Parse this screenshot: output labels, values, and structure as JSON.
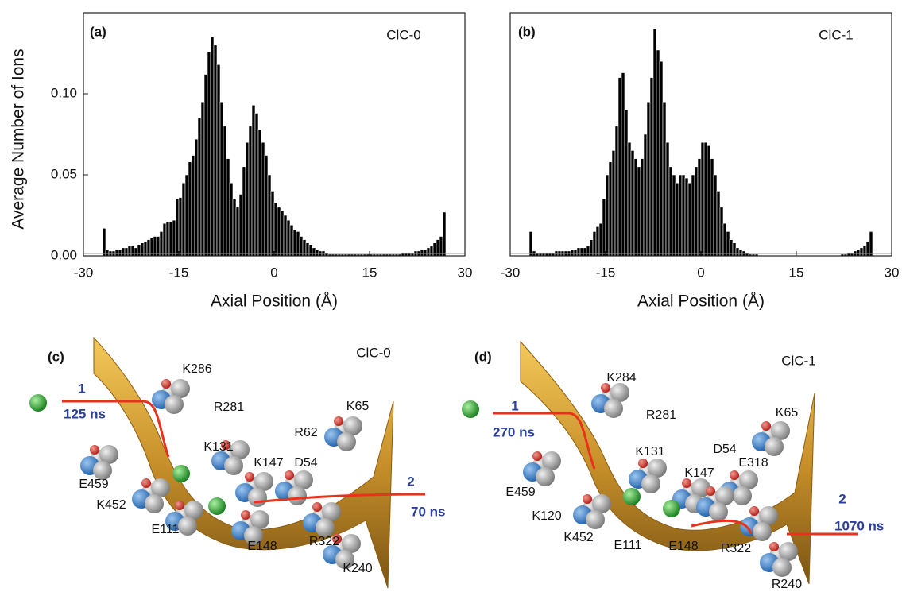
{
  "chart_data": [
    {
      "type": "histogram",
      "panel_label": "(a)",
      "annotation": "ClC-0",
      "xlabel": "Axial Position (Å)",
      "ylabel": "Average Number of Ions",
      "color": "#000000",
      "xlim": [
        -30,
        30
      ],
      "xticks": [
        -30,
        -15,
        0,
        15,
        30
      ],
      "ylim": [
        0,
        0.15
      ],
      "yticks": [
        {
          "value": 0,
          "label": "0.00"
        },
        {
          "value": 0.05,
          "label": "0.05"
        },
        {
          "value": 0.1,
          "label": "0.10"
        }
      ],
      "bins": [
        -27,
        -26.5,
        -26,
        -25.5,
        -25,
        -24.5,
        -24,
        -23.5,
        -23,
        -22.5,
        -22,
        -21.5,
        -21,
        -20.5,
        -20,
        -19.5,
        -19,
        -18.5,
        -18,
        -17.5,
        -17,
        -16.5,
        -16,
        -15.5,
        -15,
        -14.5,
        -14,
        -13.5,
        -13,
        -12.5,
        -12,
        -11.5,
        -11,
        -10.5,
        -10,
        -9.5,
        -9,
        -8.5,
        -8,
        -7.5,
        -7,
        -6.5,
        -6,
        -5.5,
        -5,
        -4.5,
        -4,
        -3.5,
        -3,
        -2.5,
        -2,
        -1.5,
        -1,
        -0.5,
        0,
        0.5,
        1,
        1.5,
        2,
        2.5,
        3,
        3.5,
        4,
        4.5,
        5,
        5.5,
        6,
        6.5,
        7,
        7.5,
        8,
        8.5,
        9,
        9.5,
        10,
        10.5,
        11,
        11.5,
        12,
        12.5,
        13,
        13.5,
        14,
        14.5,
        15,
        15.5,
        16,
        16.5,
        17,
        17.5,
        18,
        18.5,
        19,
        19.5,
        20,
        20.5,
        21,
        21.5,
        22,
        22.5,
        23,
        23.5,
        24,
        24.5,
        25,
        25.5,
        26,
        26.5,
        27
      ],
      "values": [
        0.017,
        0.004,
        0.003,
        0.003,
        0.004,
        0.004,
        0.005,
        0.005,
        0.006,
        0.006,
        0.005,
        0.007,
        0.008,
        0.009,
        0.01,
        0.011,
        0.012,
        0.012,
        0.015,
        0.02,
        0.021,
        0.021,
        0.022,
        0.035,
        0.036,
        0.045,
        0.05,
        0.058,
        0.062,
        0.072,
        0.085,
        0.095,
        0.112,
        0.126,
        0.135,
        0.13,
        0.118,
        0.095,
        0.08,
        0.06,
        0.045,
        0.035,
        0.03,
        0.038,
        0.055,
        0.07,
        0.08,
        0.093,
        0.088,
        0.078,
        0.07,
        0.062,
        0.05,
        0.04,
        0.033,
        0.03,
        0.028,
        0.025,
        0.022,
        0.019,
        0.016,
        0.015,
        0.012,
        0.01,
        0.008,
        0.007,
        0.005,
        0.004,
        0.003,
        0.003,
        0.002,
        0.001,
        0.001,
        0.001,
        0.001,
        0.001,
        0.001,
        0.001,
        0.001,
        0.001,
        0.001,
        0.001,
        0.001,
        0.001,
        0.001,
        0.001,
        0.001,
        0.001,
        0.001,
        0.001,
        0.001,
        0.001,
        0.001,
        0.001,
        0.002,
        0.002,
        0.002,
        0.002,
        0.003,
        0.003,
        0.004,
        0.004,
        0.005,
        0.006,
        0.008,
        0.01,
        0.012,
        0.027
      ]
    },
    {
      "type": "histogram",
      "panel_label": "(b)",
      "annotation": "ClC-1",
      "xlabel": "Axial Position (Å)",
      "color": "#000000",
      "xlim": [
        -30,
        30
      ],
      "xticks": [
        -30,
        -15,
        0,
        15,
        30
      ],
      "ylim": [
        0,
        0.15
      ],
      "bins": [
        -27,
        -26.5,
        -26,
        -25.5,
        -25,
        -24.5,
        -24,
        -23.5,
        -23,
        -22.5,
        -22,
        -21.5,
        -21,
        -20.5,
        -20,
        -19.5,
        -19,
        -18.5,
        -18,
        -17.5,
        -17,
        -16.5,
        -16,
        -15.5,
        -15,
        -14.5,
        -14,
        -13.5,
        -13,
        -12.5,
        -12,
        -11.5,
        -11,
        -10.5,
        -10,
        -9.5,
        -9,
        -8.5,
        -8,
        -7.5,
        -7,
        -6.5,
        -6,
        -5.5,
        -5,
        -4.5,
        -4,
        -3.5,
        -3,
        -2.5,
        -2,
        -1.5,
        -1,
        -0.5,
        0,
        0.5,
        1,
        1.5,
        2,
        2.5,
        3,
        3.5,
        4,
        4.5,
        5,
        5.5,
        6,
        6.5,
        7,
        7.5,
        8,
        8.5,
        9,
        9.5,
        10,
        10.5,
        11,
        11.5,
        12,
        12.5,
        13,
        13.5,
        14,
        14.5,
        15,
        15.5,
        16,
        16.5,
        17,
        17.5,
        18,
        18.5,
        19,
        19.5,
        20,
        20.5,
        21,
        21.5,
        22,
        22.5,
        23,
        23.5,
        24,
        24.5,
        25,
        25.5,
        26,
        26.5,
        27
      ],
      "values": [
        0.015,
        0.003,
        0.002,
        0.002,
        0.002,
        0.002,
        0.002,
        0.002,
        0.003,
        0.003,
        0.003,
        0.003,
        0.003,
        0.004,
        0.004,
        0.005,
        0.005,
        0.005,
        0.006,
        0.01,
        0.015,
        0.018,
        0.02,
        0.035,
        0.05,
        0.058,
        0.065,
        0.08,
        0.11,
        0.113,
        0.09,
        0.07,
        0.065,
        0.06,
        0.055,
        0.06,
        0.075,
        0.095,
        0.11,
        0.14,
        0.127,
        0.12,
        0.095,
        0.07,
        0.055,
        0.05,
        0.045,
        0.05,
        0.05,
        0.048,
        0.045,
        0.05,
        0.055,
        0.06,
        0.07,
        0.07,
        0.068,
        0.06,
        0.05,
        0.04,
        0.03,
        0.02,
        0.015,
        0.01,
        0.008,
        0.005,
        0.004,
        0.003,
        0.002,
        0.001,
        0.001,
        0.001,
        0,
        0,
        0,
        0,
        0,
        0,
        0,
        0,
        0,
        0,
        0,
        0,
        0,
        0,
        0,
        0,
        0,
        0,
        0,
        0,
        0,
        0,
        0,
        0,
        0,
        0,
        0.001,
        0.001,
        0.002,
        0.002,
        0.003,
        0.004,
        0.005,
        0.006,
        0.009,
        0.015
      ]
    }
  ],
  "illustrations": [
    {
      "tag": "(c)",
      "title": "ClC-0",
      "labels": [
        "K286",
        "R281",
        "K131",
        "R62",
        "K65",
        "K147",
        "D54",
        "E459",
        "K452",
        "E111",
        "E148",
        "R322",
        "K240"
      ],
      "steps": [
        "1",
        "2"
      ],
      "times": [
        "125 ns",
        "70 ns"
      ]
    },
    {
      "tag": "(d)",
      "title": "ClC-1",
      "labels": [
        "K284",
        "R281",
        "K131",
        "D54",
        "K65",
        "K147",
        "E318",
        "E459",
        "K120",
        "K452",
        "E111",
        "E148",
        "R322",
        "R240"
      ],
      "steps": [
        "1",
        "2"
      ],
      "times": [
        "270 ns",
        "1070 ns"
      ]
    }
  ]
}
